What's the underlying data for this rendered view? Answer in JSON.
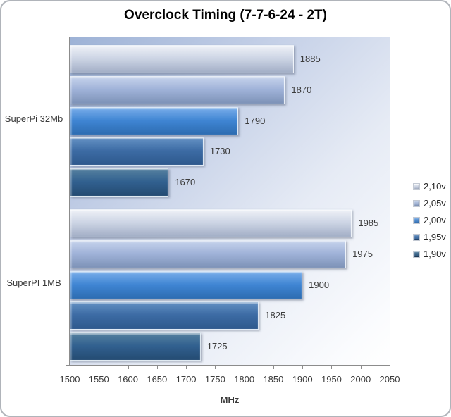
{
  "chart_data": {
    "type": "bar",
    "orientation": "horizontal",
    "title": "Overclock Timing (7-7-6-24 - 2T)",
    "xlabel": "MHz",
    "xlim": [
      1500,
      2050
    ],
    "xticks": [
      1500,
      1550,
      1600,
      1650,
      1700,
      1750,
      1800,
      1850,
      1900,
      1950,
      2000,
      2050
    ],
    "categories": [
      "SuperPi 32Mb",
      "SuperPI 1MB"
    ],
    "series": [
      {
        "name": "2,10v",
        "values": [
          1885,
          1985
        ],
        "color": "#ccd4e4",
        "gradient": [
          "#eef1f7",
          "#ccd4e4",
          "#a2aec6"
        ]
      },
      {
        "name": "2,05v",
        "values": [
          1870,
          1975
        ],
        "color": "#9fb2d8",
        "gradient": [
          "#c6d3ec",
          "#9fb2d8",
          "#7d92b7"
        ]
      },
      {
        "name": "2,00v",
        "values": [
          1790,
          1900
        ],
        "color": "#3f85d3",
        "gradient": [
          "#79adea",
          "#3f85d3",
          "#2d6cb1"
        ]
      },
      {
        "name": "1,95v",
        "values": [
          1730,
          1825
        ],
        "color": "#3c6ba4",
        "gradient": [
          "#6390c3",
          "#3c6ba4",
          "#2e598d"
        ]
      },
      {
        "name": "1,90v",
        "values": [
          1670,
          1725
        ],
        "color": "#30608f",
        "gradient": [
          "#55809f",
          "#31608f",
          "#244b72"
        ]
      }
    ],
    "bar_labels": true,
    "legend_position": "right",
    "grid": false,
    "colors": {
      "plot_bg_top_left": "#9db2d6",
      "plot_bg_bottom_right": "#ffffff",
      "axis": "#8c8c8c",
      "text": "#3a3a3a",
      "title_text": "#000000",
      "window_border": "#b0b4ba",
      "window_background": "#ffffff"
    }
  }
}
